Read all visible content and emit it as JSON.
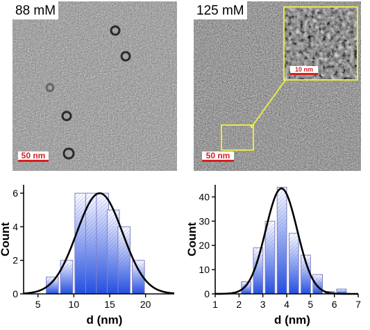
{
  "micrographs": [
    {
      "concentration": "88 mM",
      "scale_bar": "50 nm"
    },
    {
      "concentration": "125 mM",
      "scale_bar": "50 nm",
      "inset_scale_bar": "10 nm"
    }
  ],
  "colors": {
    "highlight": "#e8e84a",
    "scale_bar": "#d42020",
    "bar_fill_top": "#ffffff",
    "bar_fill_bottom": "#1f4de0",
    "fit_line": "#000000"
  },
  "chart_data": [
    {
      "type": "bar",
      "xlabel": "d (nm)",
      "ylabel": "Count",
      "xlim": [
        3,
        24
      ],
      "ylim": [
        0,
        6.5
      ],
      "xticks": [
        5,
        10,
        15,
        20
      ],
      "yticks": [
        0,
        2,
        4,
        6
      ],
      "bin_width": 1.7,
      "x": [
        7,
        9,
        11,
        12.5,
        14,
        15.5,
        17,
        19
      ],
      "values": [
        1,
        2,
        6,
        6,
        6,
        5,
        4,
        2
      ],
      "fit": {
        "type": "gaussian",
        "center": 13.6,
        "sigma": 3.2,
        "amplitude": 6.0
      },
      "grid": false
    },
    {
      "type": "bar",
      "xlabel": "d (nm)",
      "ylabel": "Count",
      "xlim": [
        1,
        7
      ],
      "ylim": [
        0,
        45
      ],
      "xticks": [
        1,
        2,
        3,
        4,
        5,
        6,
        7
      ],
      "yticks": [
        0,
        10,
        20,
        30,
        40
      ],
      "bin_width": 0.4,
      "x": [
        2.3,
        2.8,
        3.3,
        3.8,
        4.3,
        4.8,
        5.3,
        5.8,
        6.3
      ],
      "values": [
        5,
        19,
        30,
        44,
        25,
        16,
        8,
        1,
        2
      ],
      "fit": {
        "type": "gaussian",
        "center": 3.78,
        "sigma": 0.66,
        "amplitude": 43.5
      },
      "grid": false
    }
  ]
}
